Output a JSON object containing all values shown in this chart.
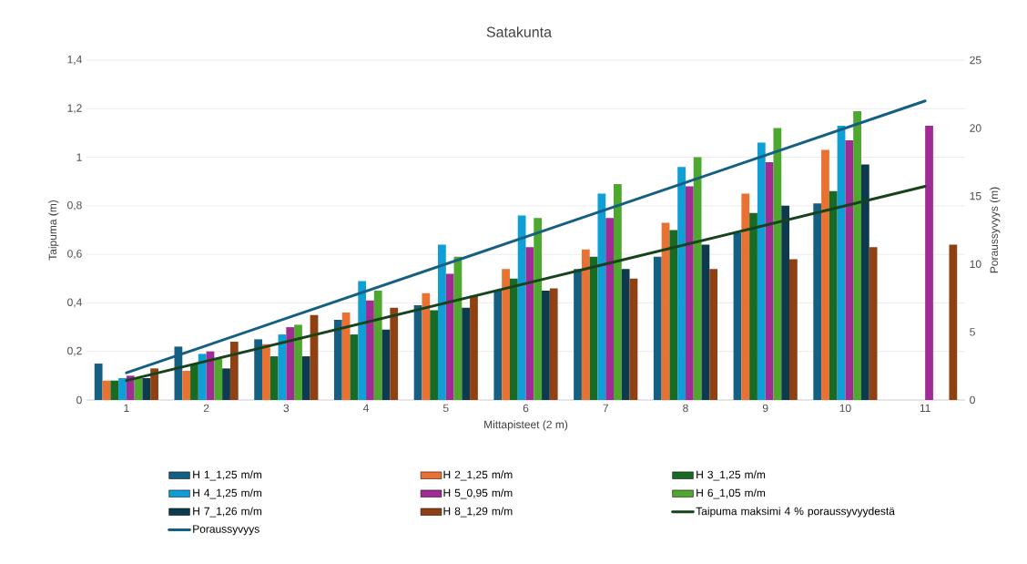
{
  "chart_data": {
    "type": "bar",
    "title": "Satakunta",
    "xlabel": "Mittapisteet (2 m)",
    "ylabel": "Taipuma (m)",
    "y2label": "Poraussyvyys (m)",
    "categories": [
      "1",
      "2",
      "3",
      "4",
      "5",
      "6",
      "7",
      "8",
      "9",
      "10",
      "11"
    ],
    "ylim": [
      0,
      1.4
    ],
    "yticks": [
      0,
      {
        "value": 0.2,
        "label": "0,2"
      },
      {
        "value": 0.4,
        "label": "0,4"
      },
      {
        "value": 0.6,
        "label": "0,6"
      },
      {
        "value": 0.8,
        "label": "0,8"
      },
      1,
      {
        "value": 1.2,
        "label": "1,2"
      },
      {
        "value": 1.4,
        "label": "1,4"
      }
    ],
    "y2lim": [
      0,
      25
    ],
    "y2ticks": [
      0,
      5,
      10,
      15,
      20,
      25
    ],
    "grid": "y",
    "legend": "bottom",
    "series": [
      {
        "name": "H 1_1,25 m/m",
        "color": "#156082",
        "values": [
          0.15,
          0.22,
          0.25,
          0.33,
          0.39,
          0.45,
          0.54,
          0.59,
          0.69,
          0.81,
          null
        ]
      },
      {
        "name": "H 2_1,25 m/m",
        "color": "#e97132",
        "values": [
          0.08,
          0.12,
          0.23,
          0.36,
          0.44,
          0.54,
          0.62,
          0.73,
          0.85,
          1.03,
          null
        ]
      },
      {
        "name": "H 3_1,25 m/m",
        "color": "#196b24",
        "values": [
          0.08,
          0.15,
          0.18,
          0.27,
          0.37,
          0.5,
          0.59,
          0.7,
          0.77,
          0.86,
          null
        ]
      },
      {
        "name": "H 4_1,25 m/m",
        "color": "#0f9ed5",
        "values": [
          0.09,
          0.19,
          0.27,
          0.49,
          0.64,
          0.76,
          0.85,
          0.96,
          1.06,
          1.13,
          null
        ]
      },
      {
        "name": "H 5_0,95 m/m",
        "color": "#a02b93",
        "values": [
          0.1,
          0.2,
          0.3,
          0.41,
          0.52,
          0.63,
          0.75,
          0.88,
          0.98,
          1.07,
          1.13
        ]
      },
      {
        "name": "H 6_1,05 m/m",
        "color": "#4ea72e",
        "values": [
          0.09,
          0.17,
          0.31,
          0.45,
          0.59,
          0.75,
          0.89,
          1.0,
          1.12,
          1.19,
          null
        ]
      },
      {
        "name": "H 7_1,26 m/m",
        "color": "#0d3a4e",
        "values": [
          0.09,
          0.13,
          0.18,
          0.29,
          0.38,
          0.45,
          0.54,
          0.64,
          0.8,
          0.97,
          null
        ]
      },
      {
        "name": "H 8_1,29 m/m",
        "color": "#8f4113",
        "values": [
          0.13,
          0.24,
          0.35,
          0.38,
          0.43,
          0.46,
          0.5,
          0.54,
          0.58,
          0.63,
          0.64
        ]
      },
      {
        "name": "Taipuma maksimi 4 % poraussyvyydestä",
        "type": "line",
        "color": "#16421c",
        "values": [
          0.08,
          0.16,
          0.24,
          0.32,
          0.4,
          0.48,
          0.56,
          0.64,
          0.72,
          0.8,
          0.88
        ]
      },
      {
        "name": "Poraussyvyys",
        "type": "line",
        "axis": "y2",
        "color": "#156082",
        "values": [
          2,
          4,
          6,
          8,
          10,
          12,
          14,
          16,
          18,
          20,
          22
        ]
      }
    ]
  }
}
